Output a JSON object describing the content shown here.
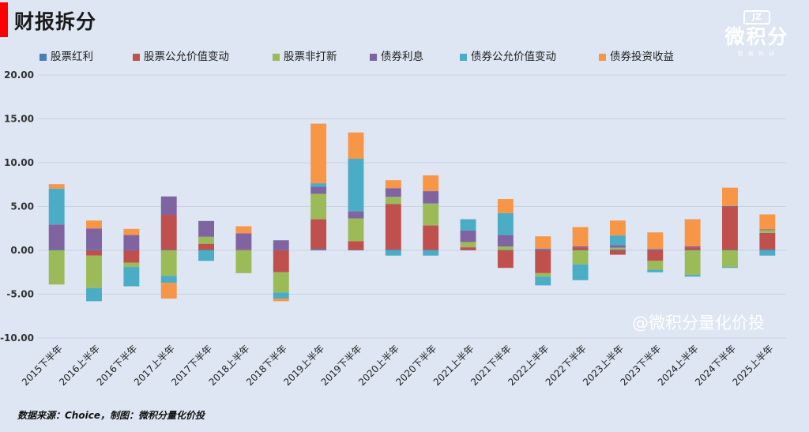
{
  "header": {
    "title": "财报拆分"
  },
  "logo": {
    "mark": "JZ",
    "text": "微积分",
    "sub": "数 据 科 研"
  },
  "watermark": "@微积分量化价投",
  "source": "数据来源：Choice，制图：微积分量化价投",
  "chart_data": {
    "type": "bar",
    "stacked": true,
    "title": "",
    "xlabel": "",
    "ylabel": "",
    "ylim": [
      -10,
      20
    ],
    "yticks": [
      "-10.00",
      "-5.00",
      "0.00",
      "5.00",
      "10.00",
      "15.00",
      "20.00"
    ],
    "grid": true,
    "legend_position": "top",
    "categories": [
      "2015下半年",
      "2016上半年",
      "2016下半年",
      "2017上半年",
      "2017下半年",
      "2018上半年",
      "2018下半年",
      "2019上半年",
      "2019下半年",
      "2020上半年",
      "2020下半年",
      "2021上半年",
      "2021下半年",
      "2022上半年",
      "2022下半年",
      "2023上半年",
      "2023下半年",
      "2024上半年",
      "2024下半年",
      "2025上半年"
    ],
    "series": [
      {
        "name": "股票红利",
        "color": "#4a7ebb",
        "values": [
          0.05,
          0.1,
          0.05,
          0.05,
          0.05,
          0.05,
          0.05,
          0.15,
          0.05,
          0.1,
          0.05,
          0.05,
          0.05,
          0.1,
          0.05,
          0.1,
          0.05,
          0.05,
          0.05,
          0.1
        ]
      },
      {
        "name": "股票公允价值变动",
        "color": "#c0504d",
        "values": [
          0.0,
          -0.6,
          -1.4,
          4.0,
          0.7,
          0.1,
          -2.5,
          3.4,
          1.0,
          5.2,
          2.8,
          0.3,
          -2.0,
          -2.6,
          0.3,
          -0.5,
          -1.2,
          0.3,
          4.9,
          1.9
        ]
      },
      {
        "name": "股票非打新",
        "color": "#9bbb59",
        "values": [
          -3.9,
          -3.7,
          -0.5,
          -2.9,
          0.8,
          -2.6,
          -2.3,
          2.9,
          2.6,
          0.8,
          2.5,
          0.6,
          0.4,
          -0.4,
          -1.6,
          0.2,
          -1.0,
          -2.8,
          -1.9,
          0.3
        ]
      },
      {
        "name": "债券利息",
        "color": "#8064a2",
        "values": [
          2.9,
          2.4,
          1.7,
          2.1,
          1.8,
          1.8,
          1.1,
          0.8,
          0.8,
          1.0,
          1.4,
          1.3,
          1.3,
          0.1,
          0.1,
          0.3,
          0.1,
          0.1,
          0.1,
          0.1
        ]
      },
      {
        "name": "债券公允价值变动",
        "color": "#4bacc6",
        "values": [
          4.1,
          -1.5,
          -2.2,
          -0.8,
          -1.2,
          0.0,
          -0.7,
          0.4,
          6.0,
          -0.6,
          -0.6,
          1.3,
          2.5,
          -1.0,
          -1.8,
          1.1,
          -0.3,
          -0.2,
          -0.1,
          -0.6
        ]
      },
      {
        "name": "债券投资收益",
        "color": "#f79646",
        "values": [
          0.5,
          0.9,
          0.7,
          -1.8,
          0.0,
          0.8,
          -0.3,
          6.8,
          3.0,
          0.9,
          1.8,
          0.0,
          1.6,
          1.4,
          2.2,
          1.7,
          1.9,
          3.1,
          2.1,
          1.7
        ]
      }
    ]
  }
}
